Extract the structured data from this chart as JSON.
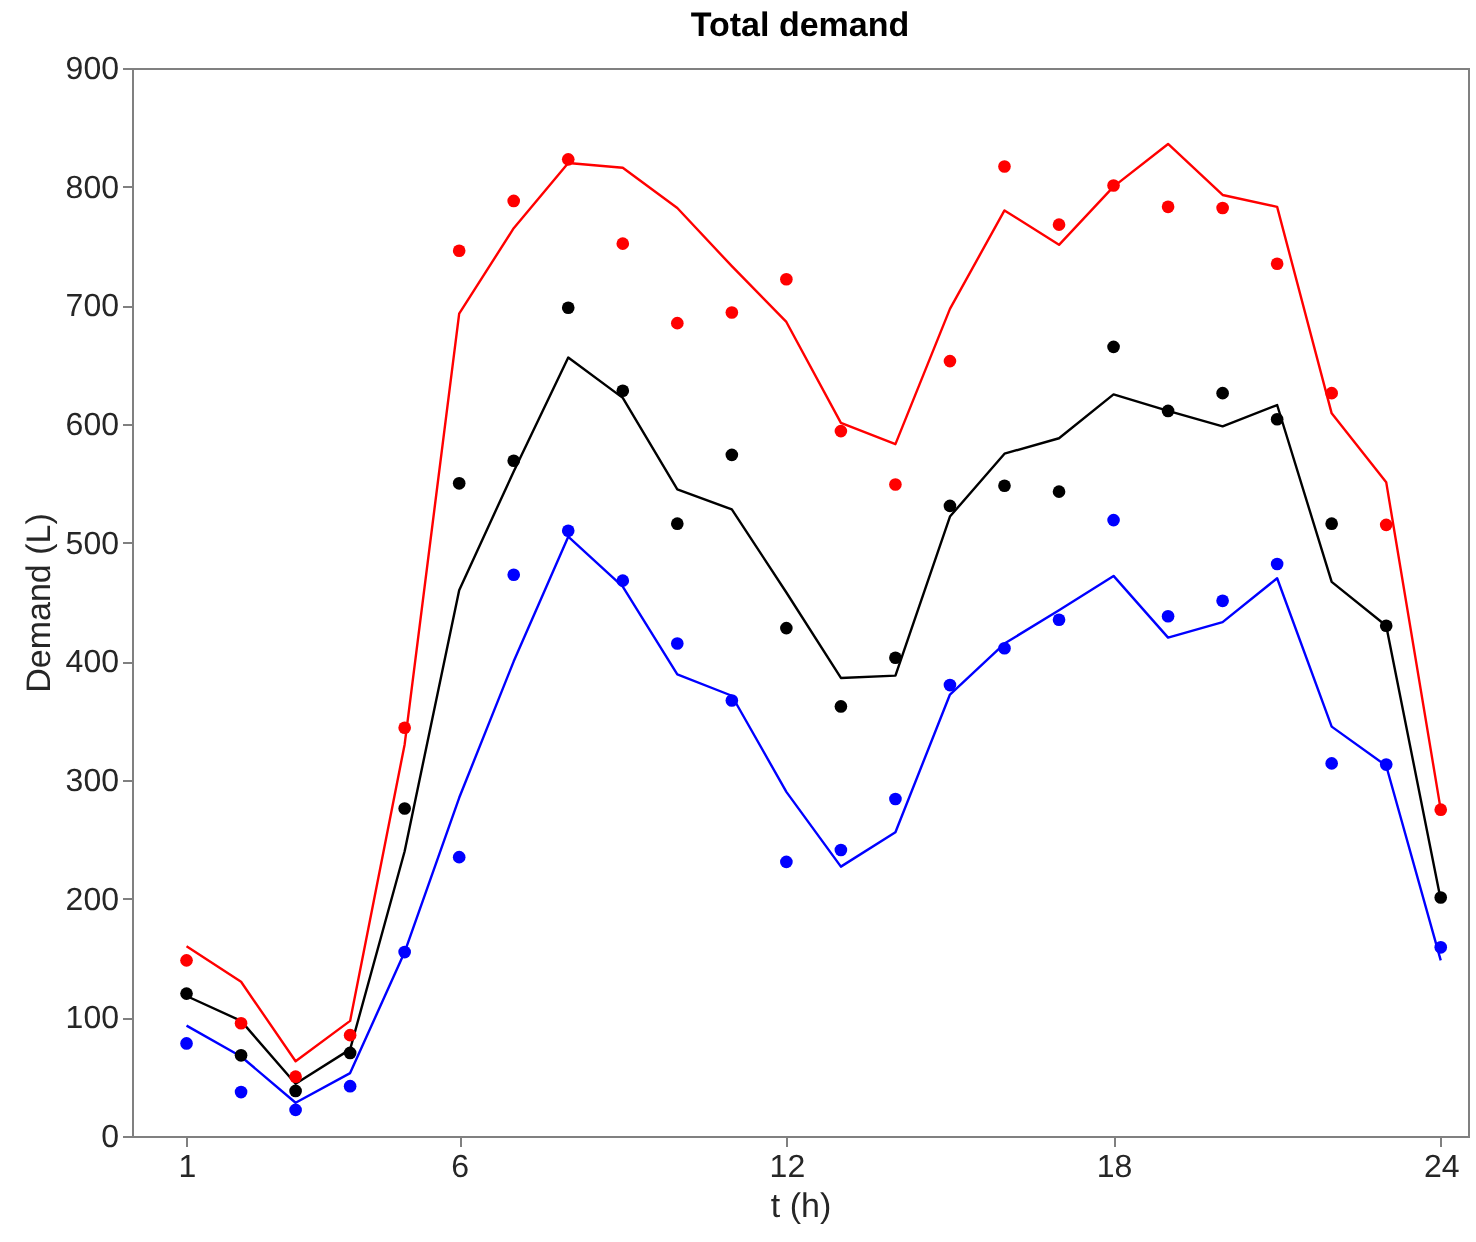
{
  "chart_data": {
    "type": "line",
    "title": "Total demand",
    "xlabel": "t (h)",
    "ylabel": "Demand (L)",
    "x": [
      1,
      2,
      3,
      4,
      5,
      6,
      7,
      8,
      9,
      10,
      11,
      12,
      13,
      14,
      15,
      16,
      17,
      18,
      19,
      20,
      21,
      22,
      23,
      24
    ],
    "series": [
      {
        "type": "line",
        "color": "#ff0000",
        "marker": "none",
        "values": [
          160,
          130,
          63,
          97,
          330,
          693,
          765,
          820,
          816,
          782,
          733,
          686,
          601,
          583,
          697,
          780,
          751,
          800,
          836,
          793,
          783,
          609,
          551,
          275
        ]
      },
      {
        "type": "line",
        "color": "#000000",
        "marker": "none",
        "values": [
          118,
          97,
          44,
          73,
          240,
          460,
          560,
          656,
          622,
          545,
          528,
          458,
          386,
          388,
          522,
          575,
          588,
          625,
          611,
          598,
          616,
          467,
          430,
          199
        ]
      },
      {
        "type": "line",
        "color": "#0000ff",
        "marker": "none",
        "values": [
          93,
          67,
          28,
          53,
          155,
          285,
          400,
          505,
          463,
          389,
          371,
          290,
          227,
          256,
          372,
          415,
          443,
          472,
          420,
          433,
          470,
          345,
          312,
          148
        ]
      },
      {
        "type": "scatter",
        "color": "#ff0000",
        "marker": "circle",
        "values": [
          148,
          95,
          50,
          85,
          344,
          746,
          788,
          823,
          752,
          685,
          694,
          722,
          594,
          549,
          653,
          817,
          768,
          801,
          783,
          782,
          735,
          626,
          515,
          275
        ]
      },
      {
        "type": "scatter",
        "color": "#000000",
        "marker": "circle",
        "values": [
          120,
          68,
          38,
          70,
          276,
          550,
          569,
          698,
          628,
          516,
          574,
          428,
          362,
          403,
          531,
          548,
          543,
          665,
          611,
          626,
          604,
          516,
          430,
          201
        ]
      },
      {
        "type": "scatter",
        "color": "#0000ff",
        "marker": "circle",
        "values": [
          78,
          37,
          22,
          42,
          155,
          235,
          473,
          510,
          468,
          415,
          367,
          231,
          241,
          284,
          380,
          411,
          435,
          519,
          438,
          451,
          482,
          314,
          313,
          159
        ]
      }
    ],
    "xlim": [
      0,
      24.5
    ],
    "xticks": [
      1,
      6,
      12,
      18,
      24
    ],
    "ylim": [
      0,
      900
    ],
    "yticks": [
      0,
      100,
      200,
      300,
      400,
      500,
      600,
      700,
      800,
      900
    ],
    "grid": false
  }
}
